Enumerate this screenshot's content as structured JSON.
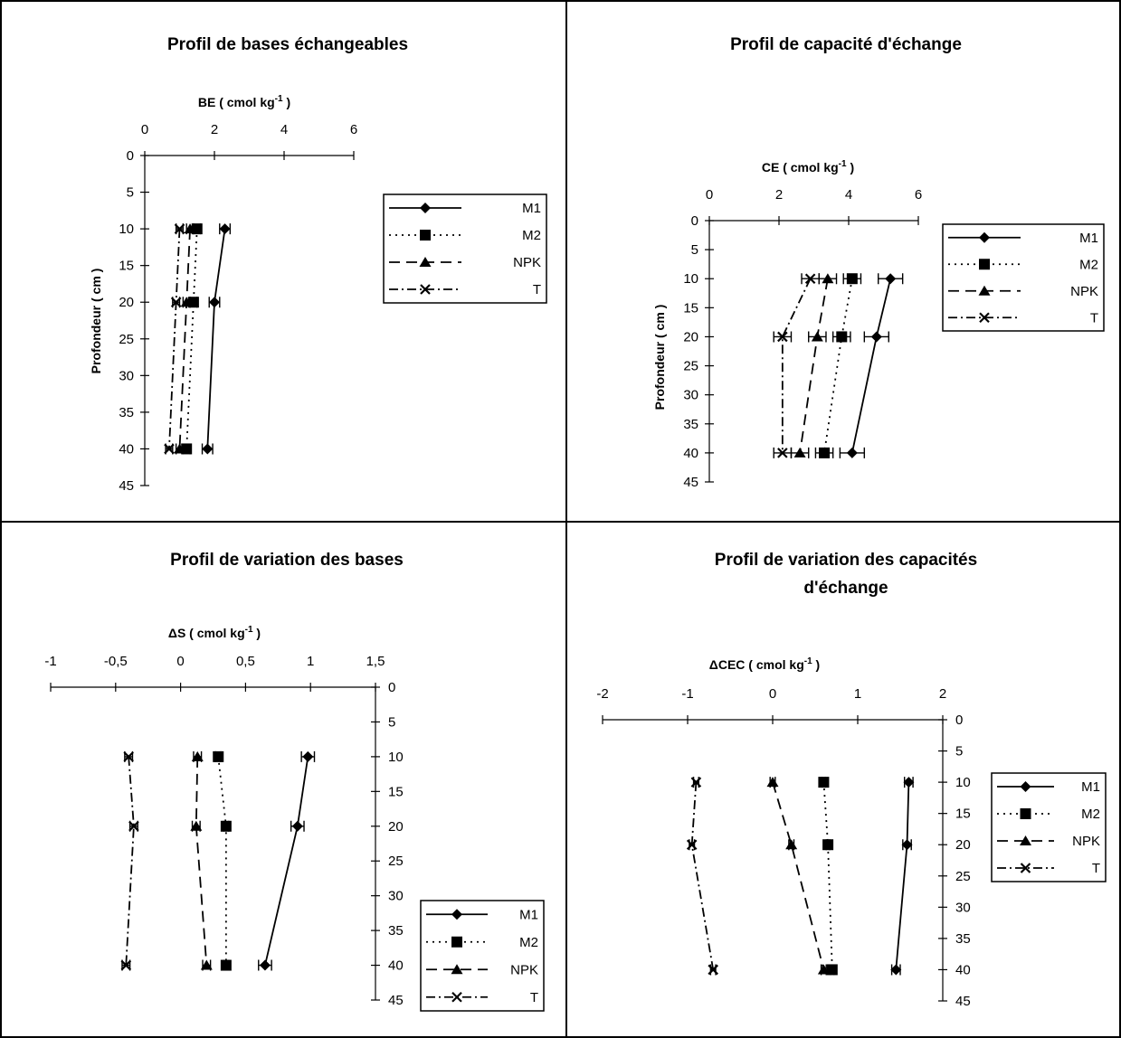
{
  "chart_data": [
    {
      "type": "line",
      "title": "Profil de bases échangeables",
      "xlabel": "BE ( cmol kg-1 )",
      "ylabel": "Profondeur ( cm )",
      "xlim": [
        0,
        6
      ],
      "ylim": [
        0,
        45
      ],
      "x_ticks": [
        0,
        2,
        4,
        6
      ],
      "y_ticks": [
        0,
        5,
        10,
        15,
        20,
        25,
        30,
        35,
        40,
        45
      ],
      "y_inverted": true,
      "legend_position": "right",
      "depths": [
        10,
        20,
        40
      ],
      "series": [
        {
          "name": "M1",
          "values": [
            2.3,
            2.0,
            1.8
          ],
          "errors": [
            0.15,
            0.15,
            0.15
          ]
        },
        {
          "name": "M2",
          "values": [
            1.5,
            1.4,
            1.2
          ],
          "errors": [
            0.1,
            0.1,
            0.1
          ]
        },
        {
          "name": "NPK",
          "values": [
            1.3,
            1.2,
            1.0
          ],
          "errors": [
            0.1,
            0.1,
            0.1
          ]
        },
        {
          "name": "T",
          "values": [
            1.0,
            0.9,
            0.7
          ],
          "errors": [
            0.1,
            0.1,
            0.1
          ]
        }
      ]
    },
    {
      "type": "line",
      "title": "Profil de capacité d'échange",
      "xlabel": "CE ( cmol kg-1 )",
      "ylabel": "Profondeur ( cm )",
      "xlim": [
        0,
        6
      ],
      "ylim": [
        0,
        45
      ],
      "x_ticks": [
        0,
        2,
        4,
        6
      ],
      "y_ticks": [
        0,
        5,
        10,
        15,
        20,
        25,
        30,
        35,
        40,
        45
      ],
      "y_inverted": true,
      "legend_position": "right",
      "depths": [
        10,
        20,
        40
      ],
      "series": [
        {
          "name": "M1",
          "values": [
            5.2,
            4.8,
            4.1
          ],
          "errors": [
            0.35,
            0.35,
            0.35
          ]
        },
        {
          "name": "M2",
          "values": [
            4.1,
            3.8,
            3.3
          ],
          "errors": [
            0.25,
            0.25,
            0.25
          ]
        },
        {
          "name": "NPK",
          "values": [
            3.4,
            3.1,
            2.6
          ],
          "errors": [
            0.25,
            0.25,
            0.25
          ]
        },
        {
          "name": "T",
          "values": [
            2.9,
            2.1,
            2.1
          ],
          "errors": [
            0.25,
            0.25,
            0.25
          ]
        }
      ]
    },
    {
      "type": "line",
      "title": "Profil de variation des bases",
      "xlabel": "ΔS ( cmol kg-1 )",
      "ylabel": "",
      "xlim": [
        -1,
        1.5
      ],
      "ylim": [
        0,
        45
      ],
      "x_ticks": [
        -1,
        -0.5,
        0,
        0.5,
        1,
        1.5
      ],
      "x_tick_labels": [
        "-1",
        "-0,5",
        "0",
        "0,5",
        "1",
        "1,5"
      ],
      "y_ticks": [
        0,
        5,
        10,
        15,
        20,
        25,
        30,
        35,
        40,
        45
      ],
      "y_inverted": true,
      "legend_position": "bottom-right",
      "depths": [
        10,
        20,
        40
      ],
      "series": [
        {
          "name": "M1",
          "values": [
            0.98,
            0.9,
            0.65
          ],
          "errors": [
            0.05,
            0.05,
            0.05
          ]
        },
        {
          "name": "M2",
          "values": [
            0.29,
            0.35,
            0.35
          ],
          "errors": [
            0.02,
            0.02,
            0.02
          ]
        },
        {
          "name": "NPK",
          "values": [
            0.13,
            0.12,
            0.2
          ],
          "errors": [
            0.03,
            0.03,
            0.03
          ]
        },
        {
          "name": "T",
          "values": [
            -0.4,
            -0.36,
            -0.42
          ],
          "errors": [
            0.03,
            0.03,
            0.03
          ]
        }
      ]
    },
    {
      "type": "line",
      "title": "Profil de variation des capacités d'échange",
      "xlabel": "ΔCEC ( cmol kg-1 )",
      "ylabel": "",
      "xlim": [
        -2,
        2
      ],
      "ylim": [
        0,
        45
      ],
      "x_ticks": [
        -2,
        -1,
        0,
        1,
        2
      ],
      "y_ticks": [
        0,
        5,
        10,
        15,
        20,
        25,
        30,
        35,
        40,
        45
      ],
      "y_inverted": true,
      "legend_position": "right",
      "depths": [
        10,
        20,
        40
      ],
      "series": [
        {
          "name": "M1",
          "values": [
            1.6,
            1.58,
            1.45
          ],
          "errors": [
            0.05,
            0.05,
            0.05
          ]
        },
        {
          "name": "M2",
          "values": [
            0.6,
            0.65,
            0.7
          ],
          "errors": [
            0.02,
            0.02,
            0.02
          ]
        },
        {
          "name": "NPK",
          "values": [
            0.0,
            0.22,
            0.6
          ],
          "errors": [
            0.03,
            0.03,
            0.03
          ]
        },
        {
          "name": "T",
          "values": [
            -0.9,
            -0.95,
            -0.7
          ],
          "errors": [
            0.03,
            0.03,
            0.03
          ]
        }
      ]
    }
  ]
}
